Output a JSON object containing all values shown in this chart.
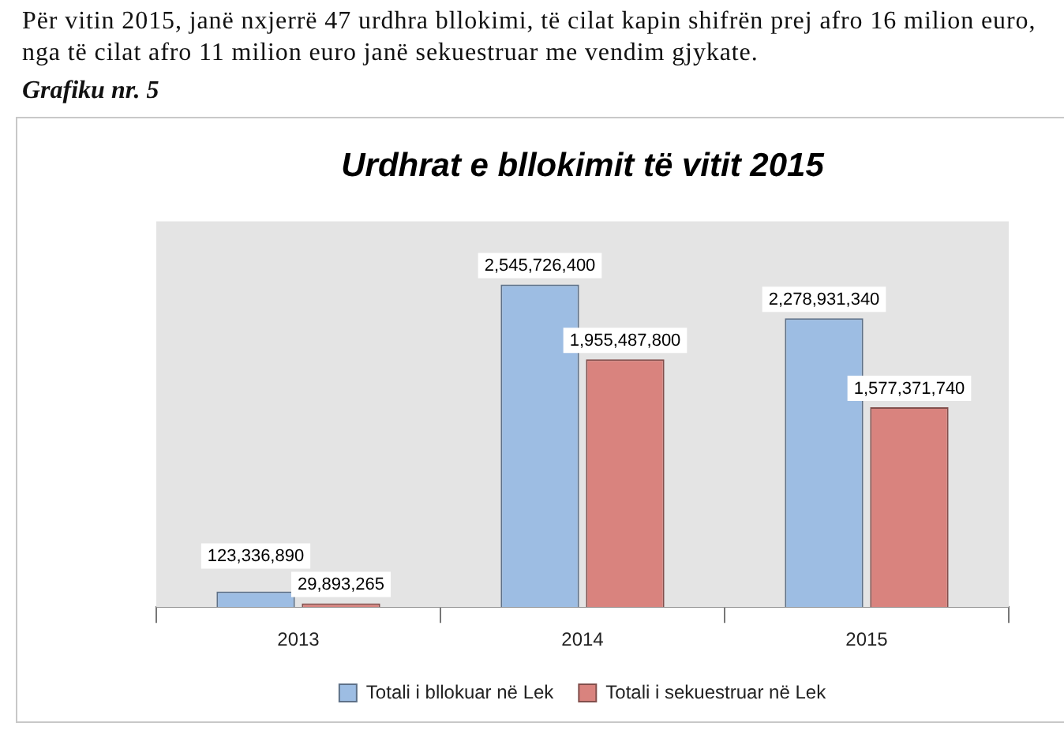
{
  "chart_data": {
    "type": "bar",
    "title": "Urdhrat e bllokimit të vitit 2015",
    "annotations": [
      "Për vitin 2015, janë nxjerrë 47 urdhra bllokimi, të cilat kapin shifrën prej afro 16 milion euro, nga të cilat afro 11 milion euro janë sekuestruar me vendim gjykate.",
      "Grafiku nr. 5"
    ],
    "categories": [
      "2013",
      "2014",
      "2015"
    ],
    "series": [
      {
        "name": "Totali i bllokuar në Lek",
        "color": "#9dbde3",
        "values": [
          123336890,
          2545726400,
          2278931340
        ],
        "value_labels": [
          "123,336,890",
          "2,545,726,400",
          "2,278,931,340"
        ]
      },
      {
        "name": "Totali i sekuestruar në Lek",
        "color": "#d9837e",
        "values": [
          29893265,
          1955487800,
          1577371740
        ],
        "value_labels": [
          "29,893,265",
          "1,955,487,800",
          "1,577,371,740"
        ]
      }
    ],
    "legend": "bottom"
  }
}
